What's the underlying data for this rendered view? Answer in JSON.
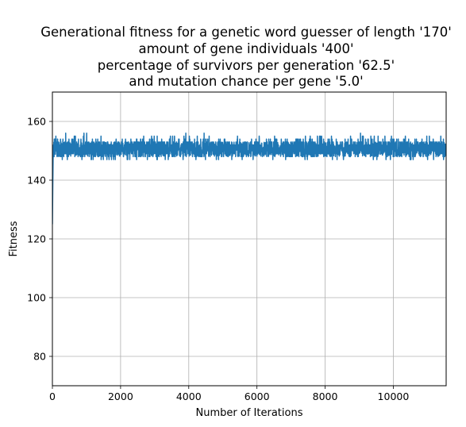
{
  "chart_data": {
    "type": "line",
    "title_lines": [
      "Generational fitness for a genetic word guesser of length '170'",
      "amount of gene individuals '400'",
      "percentage of survivors per generation '62.5'",
      "and mutation chance per gene '5.0'"
    ],
    "xlabel": "Number of Iterations",
    "ylabel": "Fitness",
    "xlim": [
      0,
      11550
    ],
    "ylim": [
      70,
      170
    ],
    "xticks": [
      0,
      2000,
      4000,
      6000,
      8000,
      10000
    ],
    "yticks": [
      80,
      100,
      120,
      140,
      160
    ],
    "grid": true,
    "line_color": "#1f77b4",
    "series": [
      {
        "x_start": 0,
        "x_end": 11550,
        "initial_value": 125,
        "steady_band": [
          146,
          156
        ],
        "steady_mean": 150.5,
        "peaks": [
          {
            "x": 700,
            "y": 157
          },
          {
            "x": 2900,
            "y": 157
          },
          {
            "x": 3500,
            "y": 158
          },
          {
            "x": 4500,
            "y": 158
          },
          {
            "x": 4850,
            "y": 158
          },
          {
            "x": 11450,
            "y": 158
          }
        ],
        "troughs": [
          {
            "x": 5400,
            "y": 145
          },
          {
            "x": 6200,
            "y": 145.5
          },
          {
            "x": 11550,
            "y": 145
          }
        ]
      }
    ]
  }
}
